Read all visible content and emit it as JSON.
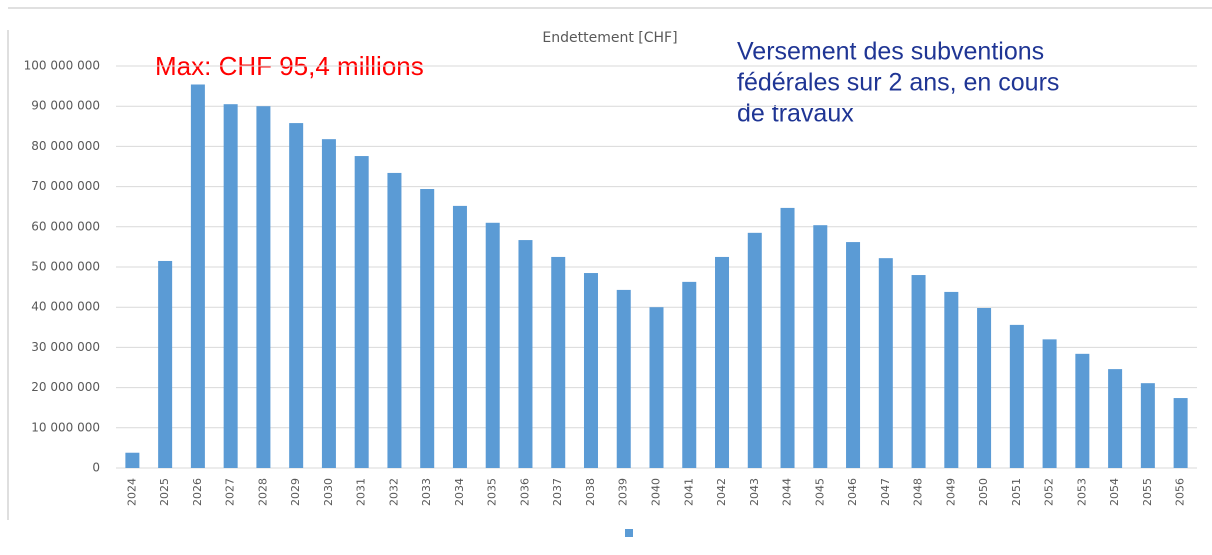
{
  "chart_data": {
    "type": "bar",
    "title": "Endettement [CHF]",
    "categories": [
      "2024",
      "2025",
      "2026",
      "2027",
      "2028",
      "2029",
      "2030",
      "2031",
      "2032",
      "2033",
      "2034",
      "2035",
      "2036",
      "2037",
      "2038",
      "2039",
      "2040",
      "2041",
      "2042",
      "2043",
      "2044",
      "2045",
      "2046",
      "2047",
      "2048",
      "2049",
      "2050",
      "2051",
      "2052",
      "2053",
      "2054",
      "2055",
      "2056"
    ],
    "values": [
      3800000,
      51500000,
      95400000,
      90500000,
      90000000,
      85800000,
      81800000,
      77600000,
      73400000,
      69400000,
      65200000,
      61000000,
      56700000,
      52500000,
      48500000,
      44300000,
      40000000,
      46300000,
      52500000,
      58500000,
      64700000,
      60400000,
      56200000,
      52200000,
      48000000,
      43800000,
      39800000,
      35600000,
      32000000,
      28400000,
      24600000,
      21100000,
      17400000
    ],
    "color": "#5b9bd5",
    "ylim": [
      0,
      100000000
    ],
    "yticks": [
      0,
      {
        "value": 10000000,
        "label": "10 000 000"
      },
      {
        "value": 20000000,
        "label": "20 000 000"
      },
      {
        "value": 30000000,
        "label": "30 000 000"
      },
      {
        "value": 40000000,
        "label": "40 000 000"
      },
      {
        "value": 50000000,
        "label": "50 000 000"
      },
      {
        "value": 60000000,
        "label": "60 000 000"
      },
      {
        "value": 70000000,
        "label": "70 000 000"
      },
      {
        "value": 80000000,
        "label": "80 000 000"
      },
      {
        "value": 90000000,
        "label": "90 000 000"
      },
      {
        "value": 100000000,
        "label": "100 000 000"
      }
    ],
    "grid": true,
    "annotations": [
      {
        "text": "Max: CHF 95,4 millions",
        "color": "#ff0000"
      },
      {
        "lines": [
          "Versement des subventions",
          "fédérales sur 2 ans, en cours",
          "de travaux"
        ],
        "color": "#1f3594"
      }
    ]
  }
}
